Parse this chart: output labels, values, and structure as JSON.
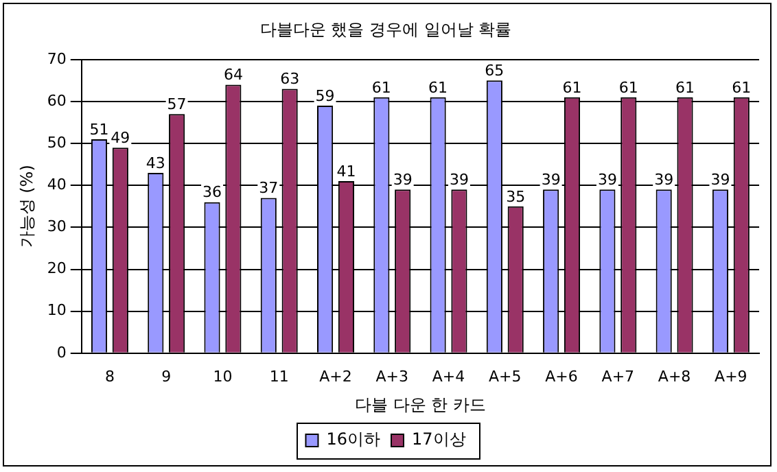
{
  "chart_data": {
    "type": "bar",
    "title": "다블다운 했을 경우에 일어날 확률",
    "xlabel": "다블 다운 한 카드",
    "ylabel": "가능성 (%)",
    "categories": [
      "8",
      "9",
      "10",
      "11",
      "A+2",
      "A+3",
      "A+4",
      "A+5",
      "A+6",
      "A+7",
      "A+8",
      "A+9"
    ],
    "series": [
      {
        "name": "16이하",
        "color": "#9999ff",
        "values": [
          51,
          43,
          36,
          37,
          59,
          61,
          61,
          65,
          39,
          39,
          39,
          39
        ]
      },
      {
        "name": "17이상",
        "color": "#993366",
        "values": [
          49,
          57,
          64,
          63,
          41,
          39,
          39,
          35,
          61,
          61,
          61,
          61
        ]
      }
    ],
    "ylim": [
      0,
      70
    ],
    "yticks": [
      0,
      10,
      20,
      30,
      40,
      50,
      60,
      70
    ],
    "grid": "y",
    "legend": "bottom",
    "data_labels": true
  }
}
